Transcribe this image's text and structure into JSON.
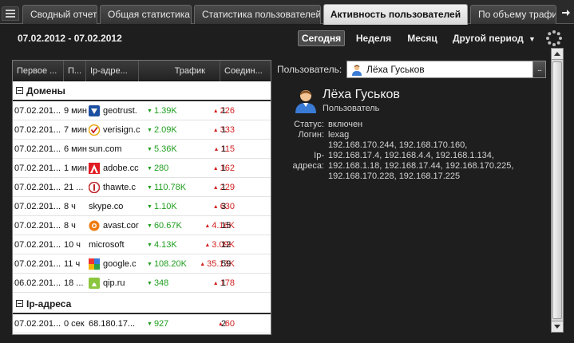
{
  "tabs": [
    {
      "label": "Сводный отчет",
      "active": false
    },
    {
      "label": "Общая статистика",
      "active": false
    },
    {
      "label": "Статистика пользователей",
      "active": false
    },
    {
      "label": "Активность пользователей",
      "active": true
    },
    {
      "label": "По объему трафика",
      "active": false
    }
  ],
  "toolbar": {
    "date_range": "07.02.2012 - 07.02.2012",
    "periods": [
      {
        "label": "Сегодня",
        "active": true
      },
      {
        "label": "Неделя",
        "active": false
      },
      {
        "label": "Месяц",
        "active": false
      },
      {
        "label": "Другой период",
        "active": false
      }
    ]
  },
  "table": {
    "columns": [
      "Первое ...",
      "П...",
      "Ip-адре...",
      "Трафик",
      "Соедин..."
    ],
    "groups": [
      {
        "label": "Домены",
        "rows": [
          {
            "date": "07.02.201...",
            "dur": "9 мин",
            "icon": "geotrust-icon",
            "ip": "geotrust.",
            "in": "1.39K",
            "out": "226",
            "conn": "1"
          },
          {
            "date": "07.02.201...",
            "dur": "7 мин",
            "icon": "verisign-icon",
            "ip": "verisign.c",
            "in": "2.09K",
            "out": "333",
            "conn": "1"
          },
          {
            "date": "07.02.201...",
            "dur": "6 мин",
            "icon": "",
            "ip": "sun.com",
            "in": "5.36K",
            "out": "115",
            "conn": "1"
          },
          {
            "date": "07.02.201...",
            "dur": "1 мин",
            "icon": "adobe-icon",
            "ip": "adobe.cc",
            "in": "280",
            "out": "162",
            "conn": "1"
          },
          {
            "date": "07.02.201...",
            "dur": "21 ...",
            "icon": "thawte-icon",
            "ip": "thawte.c",
            "in": "110.78K",
            "out": "229",
            "conn": "1"
          },
          {
            "date": "07.02.201...",
            "dur": "8 ч",
            "icon": "",
            "ip": "skype.co",
            "in": "1.10K",
            "out": "630",
            "conn": "3"
          },
          {
            "date": "07.02.201...",
            "dur": "8 ч",
            "icon": "avast-icon",
            "ip": "avast.cor",
            "in": "60.67K",
            "out": "4.16K",
            "conn": "15"
          },
          {
            "date": "07.02.201...",
            "dur": "10 ч",
            "icon": "",
            "ip": "microsoft",
            "in": "4.13K",
            "out": "3.09K",
            "conn": "12"
          },
          {
            "date": "07.02.201...",
            "dur": "11 ч",
            "icon": "google-icon",
            "ip": "google.c",
            "in": "108.20K",
            "out": "35.13K",
            "conn": "59"
          },
          {
            "date": "06.02.201...",
            "dur": "18 ...",
            "icon": "qip-icon",
            "ip": "qip.ru",
            "in": "348",
            "out": "178",
            "conn": "1"
          }
        ]
      },
      {
        "label": "Ip-адреса",
        "rows": [
          {
            "date": "07.02.201...",
            "dur": "0 сек",
            "icon": "",
            "ip": "68.180.17...",
            "in": "927",
            "out": "60",
            "conn": "2"
          }
        ]
      }
    ]
  },
  "user_panel": {
    "field_label": "Пользователь:",
    "field_value": "Лёха Гуськов",
    "more_label": "...",
    "name": "Лёха Гуськов",
    "role": "Пользователь",
    "status_key": "Статус:",
    "status_value": "включен",
    "login_key": "Логин:",
    "login_value": "lexag",
    "ip_key_1": "Ip-",
    "ip_key_2": "адреса:",
    "ip_lines": [
      "192.168.170.244, 192.168.170.160,",
      "192.168.17.4, 192.168.4.4, 192.168.1.134,",
      "192.168.1.18, 192.168.17.44, 192.168.170.225,",
      "192.168.170.228, 192.168.17.225"
    ]
  },
  "colors": {
    "up": "#1f9e1f",
    "down": "#d22020",
    "background": "#1e1e1e"
  }
}
